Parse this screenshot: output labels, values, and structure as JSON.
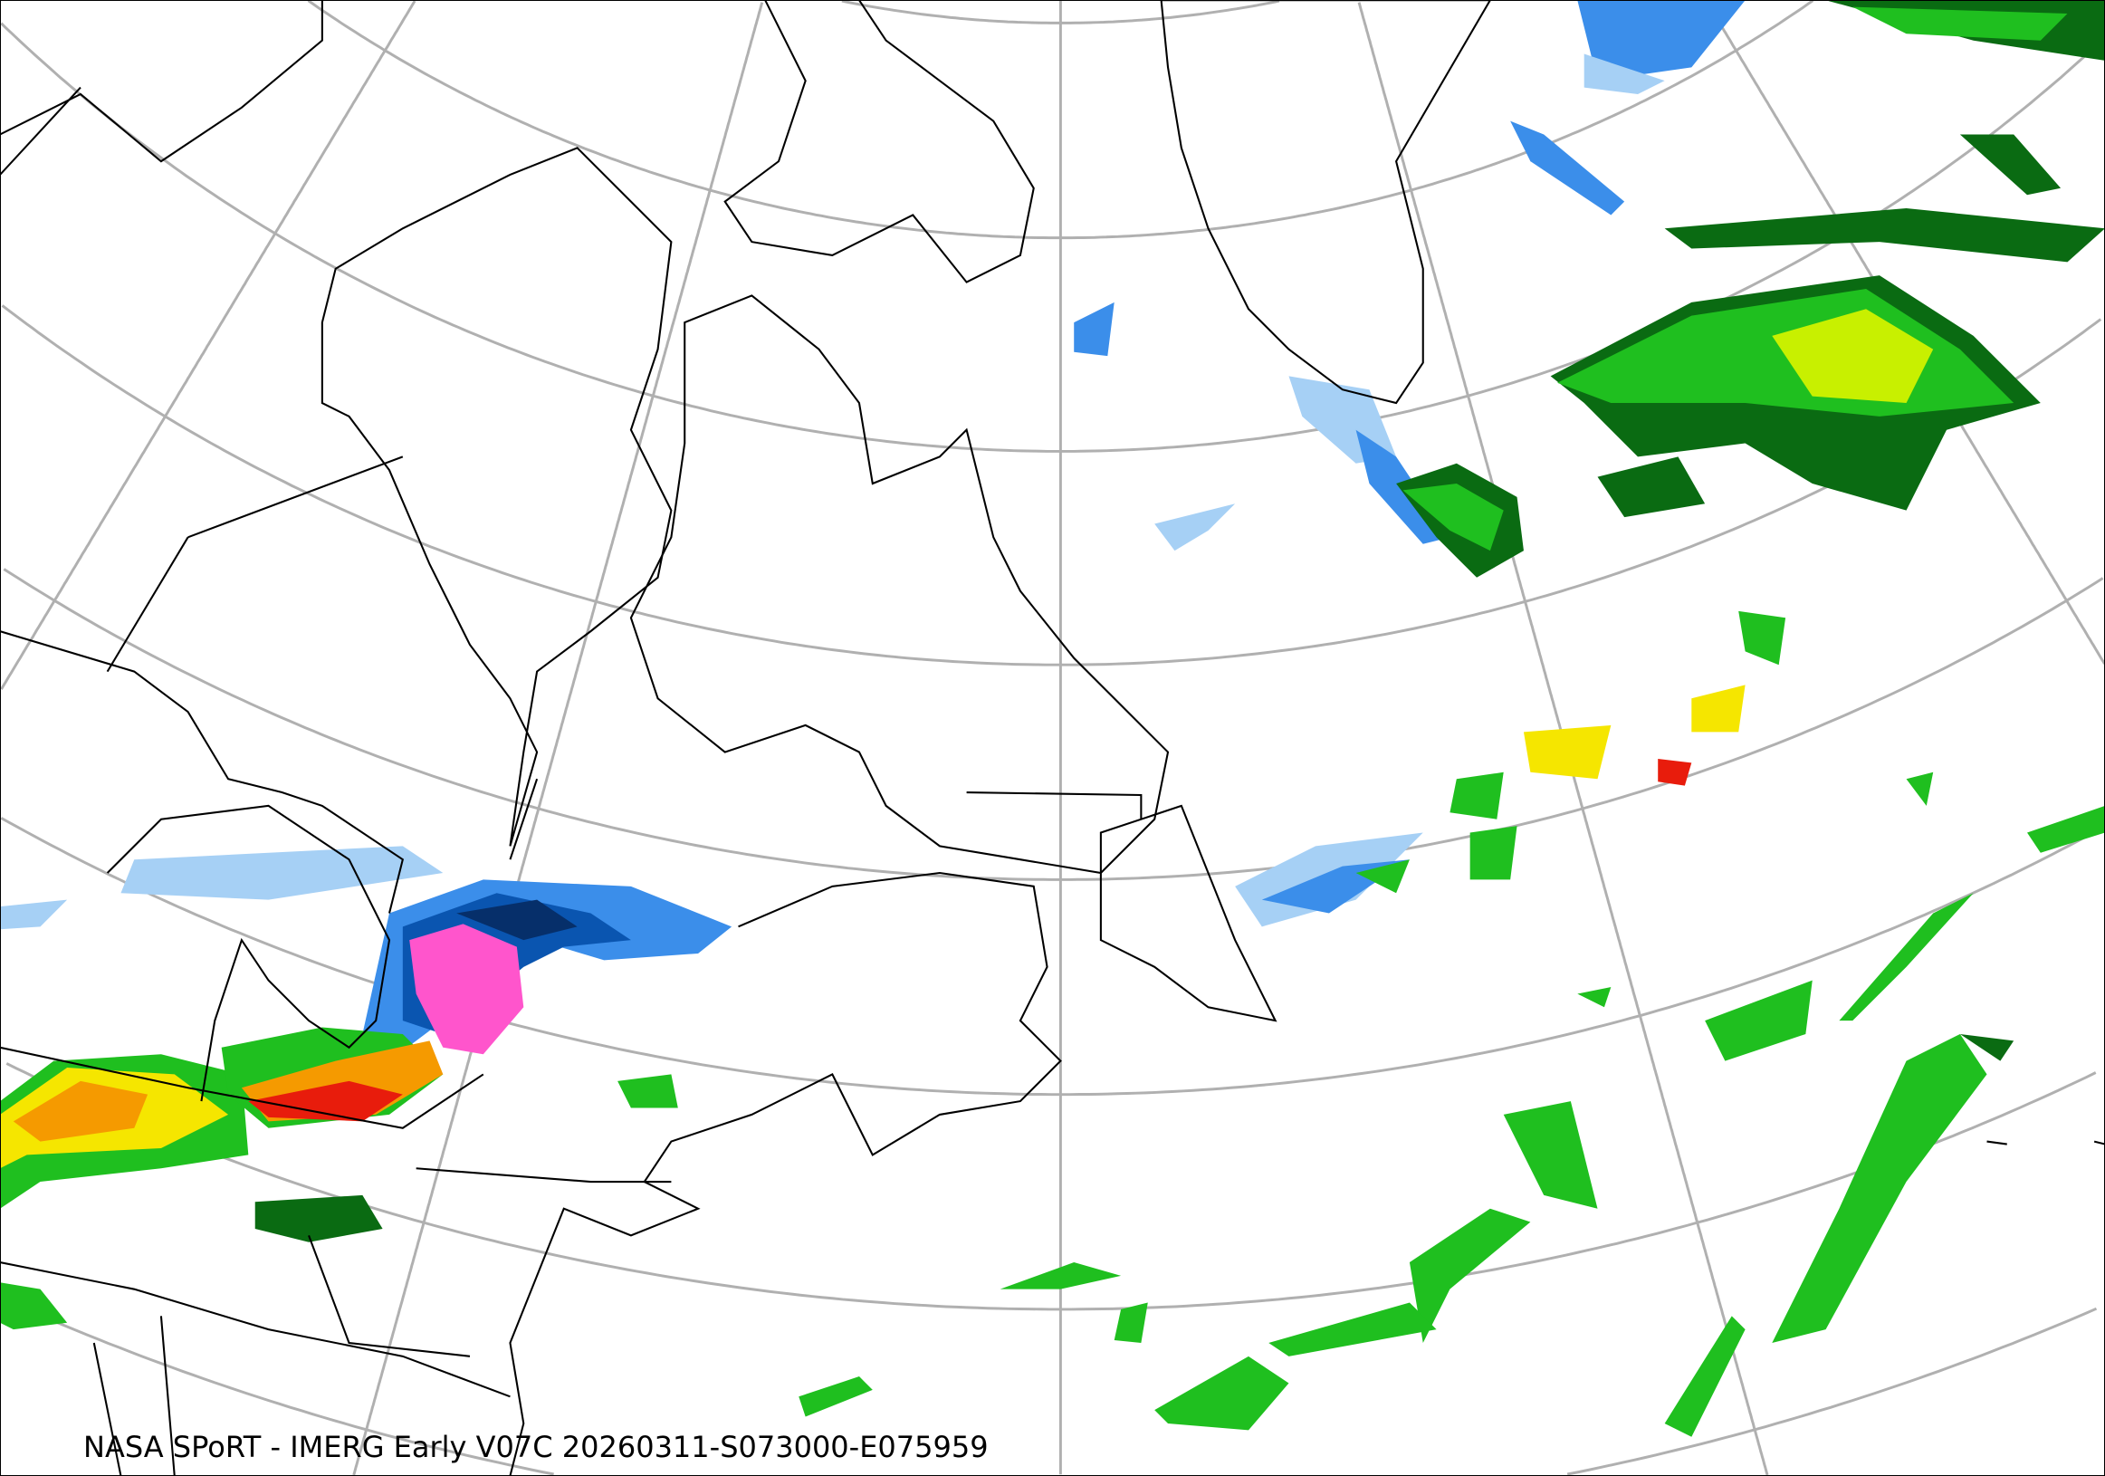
{
  "map": {
    "caption": "NASA SPoRT - IMERG Early V07C 20260311-S073000-E075959",
    "projection": "conic",
    "graticule_color": "#b0b0b0",
    "coastline_color": "#000000",
    "precip_colors": {
      "light_blue": "#a6d0f5",
      "blue": "#3b8eea",
      "dark_blue": "#0a55b0",
      "navy": "#062f6a",
      "dark_green": "#0a6b12",
      "green": "#1fbf1f",
      "bright_green": "#60e020",
      "yellow_green": "#c8f000",
      "yellow": "#f5e600",
      "orange": "#f59a00",
      "red": "#e81c0c",
      "pink": "#ff55cc"
    }
  }
}
